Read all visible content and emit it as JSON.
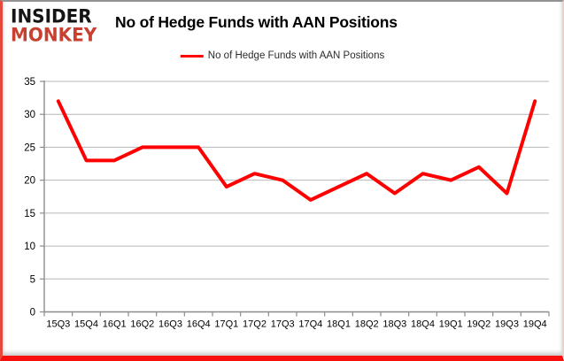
{
  "logo": {
    "line1": "INSIDER",
    "line2": "MONKEY"
  },
  "header": {
    "title": "No of Hedge Funds with AAN Positions"
  },
  "legend": {
    "label": "No of Hedge Funds with AAN Positions",
    "line_color": "#ff0000"
  },
  "chart_data": {
    "type": "line",
    "title": "No of Hedge Funds with AAN Positions",
    "categories": [
      "15Q3",
      "15Q4",
      "16Q1",
      "16Q2",
      "16Q3",
      "16Q4",
      "17Q1",
      "17Q2",
      "17Q3",
      "17Q4",
      "18Q1",
      "18Q2",
      "18Q3",
      "18Q4",
      "19Q1",
      "19Q2",
      "19Q3",
      "19Q4"
    ],
    "series": [
      {
        "name": "No of Hedge Funds with AAN Positions",
        "color": "#ff0000",
        "values": [
          32,
          23,
          23,
          25,
          25,
          25,
          19,
          21,
          20,
          17,
          19,
          21,
          18,
          21,
          20,
          22,
          18,
          32
        ]
      }
    ],
    "xlabel": "",
    "ylabel": "",
    "ylim": [
      0,
      35
    ],
    "yticks": [
      0,
      5,
      10,
      15,
      20,
      25,
      30,
      35
    ],
    "grid": true,
    "legend_position": "top-center",
    "colors": {
      "gridline": "#b7b7b7",
      "axis": "#8c8c8c",
      "tick_label": "#000000"
    }
  }
}
